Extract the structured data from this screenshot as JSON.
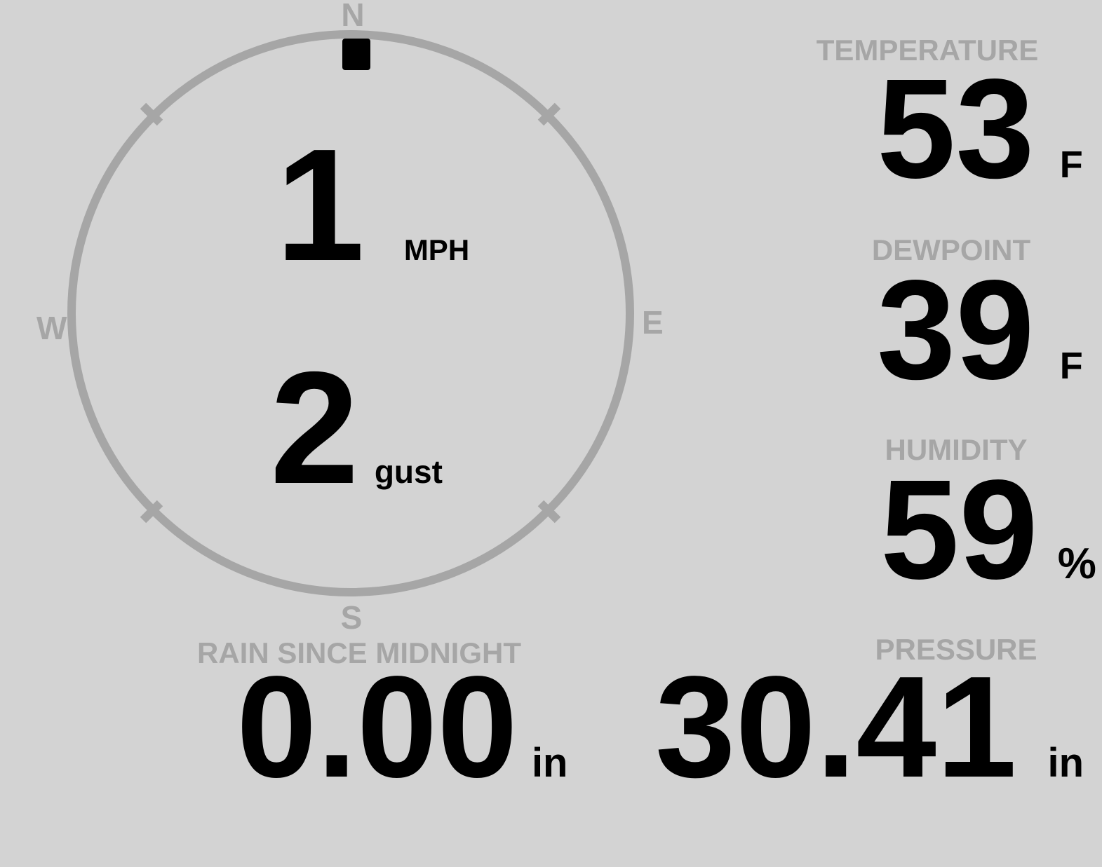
{
  "colors": {
    "background": "#d3d3d3",
    "muted_gray": "#a6a6a6",
    "value_black": "#000000"
  },
  "compass": {
    "direction_labels": {
      "north": "N",
      "east": "E",
      "south": "S",
      "west": "W"
    },
    "wind": {
      "speed": "1",
      "speed_unit": "MPH",
      "gust": "2",
      "gust_unit": "gust",
      "direction_marker_position": "north"
    }
  },
  "metrics": {
    "temperature": {
      "label": "TEMPERATURE",
      "value": "53",
      "unit": "F"
    },
    "dewpoint": {
      "label": "DEWPOINT",
      "value": "39",
      "unit": "F"
    },
    "humidity": {
      "label": "HUMIDITY",
      "value": "59",
      "unit": "%"
    },
    "rain_since_midnight": {
      "label": "RAIN SINCE MIDNIGHT",
      "value": "0.00",
      "unit": "in"
    },
    "pressure": {
      "label": "PRESSURE",
      "value": "30.41",
      "unit": "in"
    }
  }
}
